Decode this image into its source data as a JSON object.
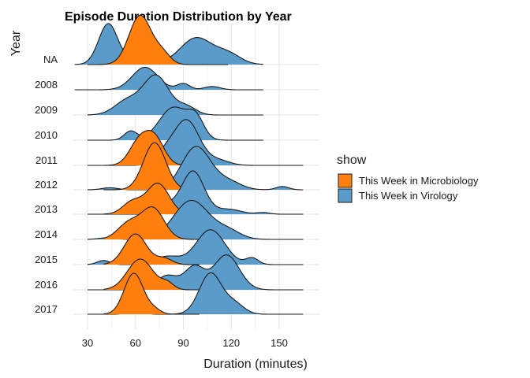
{
  "chart_data": {
    "type": "ridgeline",
    "title": "Episode Duration Distribution by Year",
    "xlabel": "Duration (minutes)",
    "ylabel": "Year",
    "xlim": [
      20,
      165
    ],
    "xticks": [
      30,
      60,
      90,
      120,
      150
    ],
    "categories": [
      "NA",
      "2008",
      "2009",
      "2010",
      "2011",
      "2012",
      "2013",
      "2014",
      "2015",
      "2016",
      "2017"
    ],
    "grid": true,
    "legend": {
      "title": "show",
      "placement": "right",
      "entries": [
        {
          "name": "This Week in Microbiology",
          "color": "#FF7F0E"
        },
        {
          "name": "This Week in Virology",
          "color": "#5B9BC9"
        }
      ]
    },
    "series": [
      {
        "name": "This Week in Virology",
        "color": "#5B9BC9",
        "ridges": {
          "NA": {
            "range": [
              22,
              140
            ],
            "peaks": [
              [
                43,
                1.0,
                6
              ],
              [
                65,
                0.3,
                7
              ],
              [
                98,
                0.65,
                10
              ],
              [
                118,
                0.25,
                8
              ]
            ]
          },
          "2008": {
            "range": [
              22,
              140
            ],
            "peaks": [
              [
                66,
                0.55,
                8
              ],
              [
                90,
                0.15,
                4
              ],
              [
                108,
                0.08,
                5
              ]
            ]
          },
          "2009": {
            "range": [
              30,
              140
            ],
            "peaks": [
              [
                55,
                0.35,
                8
              ],
              [
                73,
                0.95,
                8
              ],
              [
                92,
                0.2,
                6
              ]
            ]
          },
          "2010": {
            "range": [
              30,
              140
            ],
            "peaks": [
              [
                57,
                0.22,
                4
              ],
              [
                84,
                0.8,
                9
              ],
              [
                98,
                0.45,
                5
              ]
            ]
          },
          "2011": {
            "range": [
              30,
              165
            ],
            "peaks": [
              [
                78,
                0.25,
                6
              ],
              [
                92,
                1.1,
                8
              ],
              [
                112,
                0.12,
                7
              ]
            ]
          },
          "2012": {
            "range": [
              30,
              165
            ],
            "peaks": [
              [
                44,
                0.05,
                5
              ],
              [
                98,
                1.05,
                9
              ],
              [
                118,
                0.2,
                8
              ],
              [
                152,
                0.08,
                4
              ]
            ]
          },
          "2013": {
            "range": [
              30,
              165
            ],
            "peaks": [
              [
                80,
                0.2,
                6
              ],
              [
                96,
                1.05,
                7
              ],
              [
                118,
                0.12,
                8
              ],
              [
                140,
                0.04,
                4
              ]
            ]
          },
          "2014": {
            "range": [
              30,
              165
            ],
            "peaks": [
              [
                42,
                0.04,
                5
              ],
              [
                95,
                0.95,
                11
              ],
              [
                118,
                0.2,
                8
              ]
            ]
          },
          "2015": {
            "range": [
              30,
              165
            ],
            "peaks": [
              [
                40,
                0.1,
                4
              ],
              [
                80,
                0.2,
                8
              ],
              [
                107,
                0.85,
                9
              ],
              [
                133,
                0.16,
                4
              ]
            ]
          },
          "2016": {
            "range": [
              30,
              165
            ],
            "peaks": [
              [
                80,
                0.35,
                7
              ],
              [
                97,
                0.55,
                6
              ],
              [
                117,
                0.85,
                8
              ]
            ]
          },
          "2017": {
            "range": [
              30,
              165
            ],
            "peaks": [
              [
                60,
                0.06,
                5
              ],
              [
                107,
                1.0,
                7
              ],
              [
                122,
                0.25,
                6
              ]
            ]
          }
        }
      },
      {
        "name": "This Week in Microbiology",
        "color": "#FF7F0E",
        "ridges": {
          "NA": {
            "range": [
              30,
              118
            ],
            "peaks": [
              [
                63,
                1.2,
                7
              ],
              [
                77,
                0.25,
                5
              ]
            ]
          },
          "2011": {
            "range": [
              40,
              100
            ],
            "peaks": [
              [
                62,
                0.55,
                6
              ],
              [
                72,
                0.65,
                6
              ]
            ]
          },
          "2012": {
            "range": [
              40,
              100
            ],
            "peaks": [
              [
                72,
                1.15,
                7
              ]
            ]
          },
          "2013": {
            "range": [
              40,
              100
            ],
            "peaks": [
              [
                58,
                0.3,
                6
              ],
              [
                74,
                0.75,
                7
              ]
            ]
          },
          "2014": {
            "range": [
              40,
              100
            ],
            "peaks": [
              [
                56,
                0.4,
                7
              ],
              [
                71,
                0.75,
                7
              ]
            ]
          },
          "2015": {
            "range": [
              40,
              100
            ],
            "peaks": [
              [
                60,
                0.75,
                7
              ],
              [
                78,
                0.15,
                5
              ]
            ]
          },
          "2016": {
            "range": [
              40,
              100
            ],
            "peaks": [
              [
                63,
                0.75,
                8
              ],
              [
                80,
                0.15,
                4
              ]
            ]
          },
          "2017": {
            "range": [
              40,
              100
            ],
            "peaks": [
              [
                59,
                1.0,
                6
              ],
              [
                72,
                0.1,
                4
              ]
            ]
          }
        }
      }
    ]
  }
}
